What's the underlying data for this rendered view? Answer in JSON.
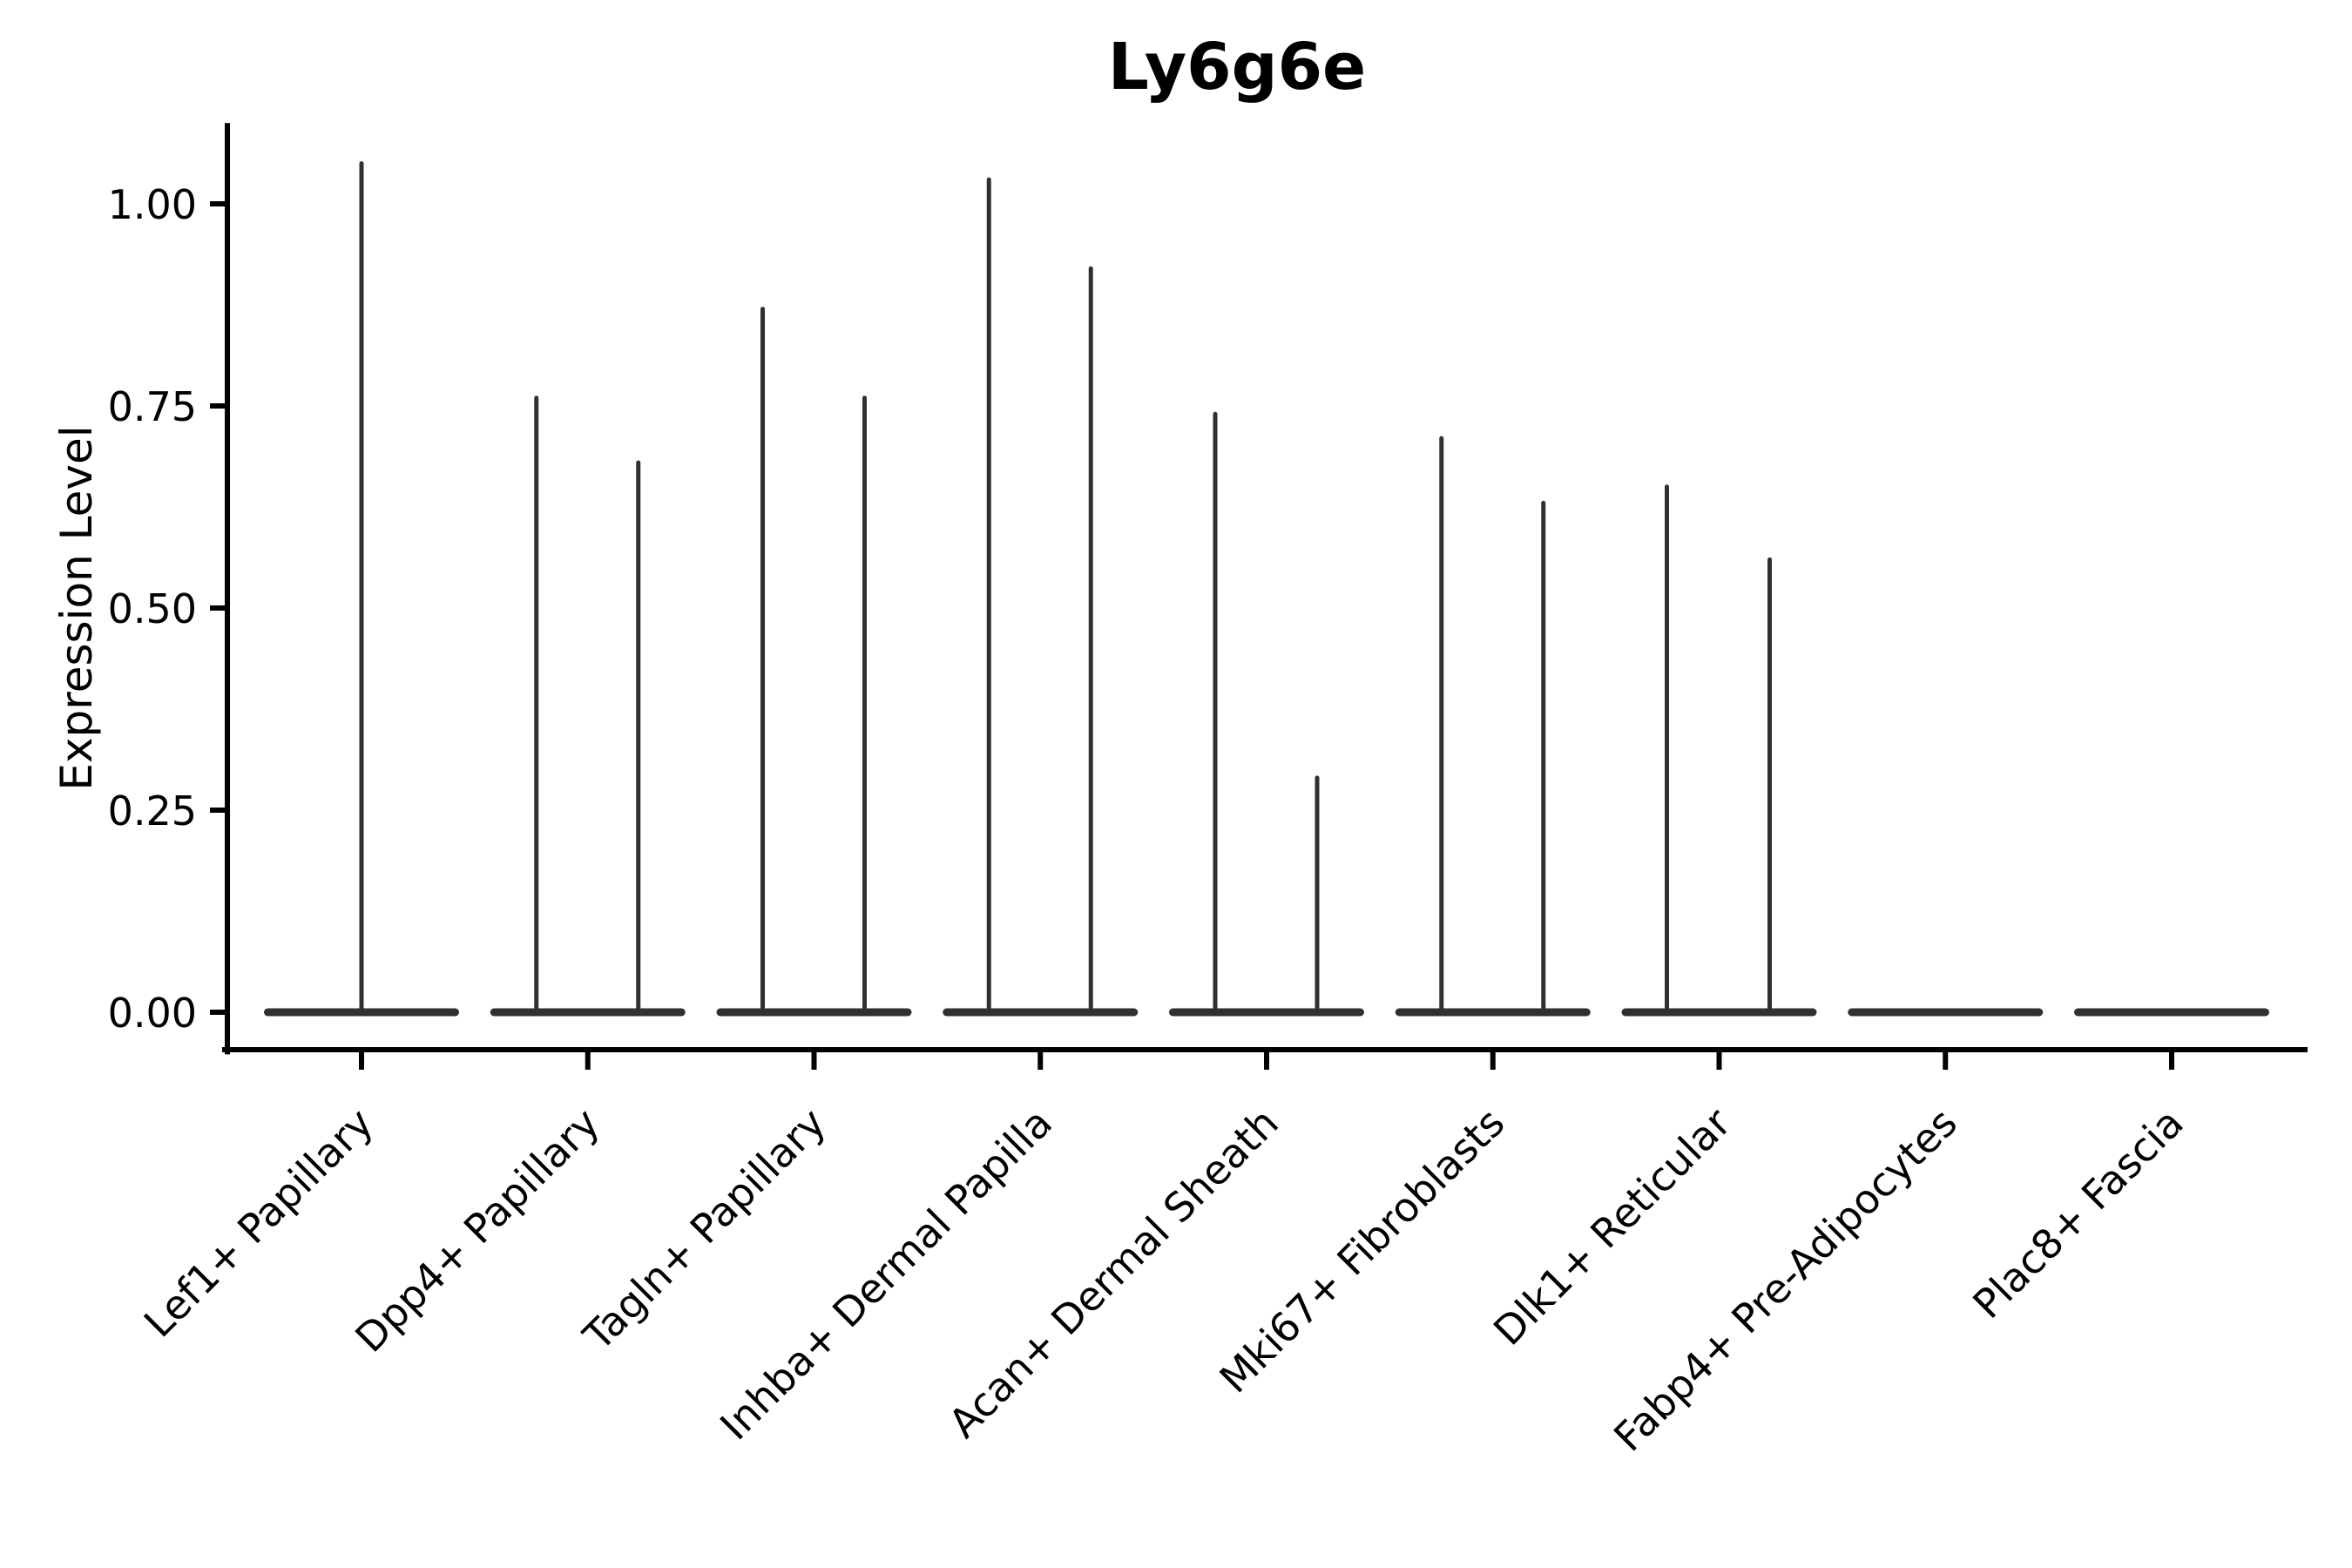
{
  "figure": {
    "title": "Ly6g6e",
    "background_color": "#ffffff"
  },
  "chart_data": {
    "type": "violin",
    "title": "Ly6g6e",
    "xlabel": "",
    "ylabel": "Expression Level",
    "ylim": [
      -0.05,
      1.1
    ],
    "grid": "off",
    "legend": "none",
    "yticks": [
      0.0,
      0.25,
      0.5,
      0.75,
      1.0
    ],
    "ytick_labels": [
      "0.00",
      "0.25",
      "0.50",
      "0.75",
      "1.00"
    ],
    "categories": [
      "Lef1+ Papillary",
      "Dpp4+ Papillary",
      "Tagln+ Papillary",
      "Inhba+ Dermal Papilla",
      "Acan+ Dermal Sheath",
      "Mki67+ Fibroblasts",
      "Dlk1+ Reticular",
      "Fabp4+ Pre-Adipocytes",
      "Plac8+ Fascia"
    ],
    "violins": [
      {
        "category": "Lef1+ Papillary",
        "base_value": 0,
        "spike_values": [
          1.05
        ],
        "spike_offsets": [
          0
        ]
      },
      {
        "category": "Dpp4+ Papillary",
        "base_value": 0,
        "spike_values": [
          0.76,
          0.68
        ],
        "spike_offsets": [
          -59,
          58
        ]
      },
      {
        "category": "Tagln+ Papillary",
        "base_value": 0,
        "spike_values": [
          0.87,
          0.76
        ],
        "spike_offsets": [
          -59,
          58
        ]
      },
      {
        "category": "Inhba+ Dermal Papilla",
        "base_value": 0,
        "spike_values": [
          1.03,
          0.92
        ],
        "spike_offsets": [
          -59,
          58
        ]
      },
      {
        "category": "Acan+ Dermal Sheath",
        "base_value": 0,
        "spike_values": [
          0.74,
          0.29
        ],
        "spike_offsets": [
          -59,
          58
        ]
      },
      {
        "category": "Mki67+ Fibroblasts",
        "base_value": 0,
        "spike_values": [
          0.71,
          0.63
        ],
        "spike_offsets": [
          -59,
          58
        ]
      },
      {
        "category": "Dlk1+ Reticular",
        "base_value": 0,
        "spike_values": [
          0.65,
          0.56
        ],
        "spike_offsets": [
          -60,
          58
        ]
      },
      {
        "category": "Fabp4+ Pre-Adipocytes",
        "base_value": 0,
        "spike_values": [],
        "spike_offsets": []
      },
      {
        "category": "Plac8+ Fascia",
        "base_value": 0,
        "spike_values": [],
        "spike_offsets": []
      }
    ],
    "colors": {
      "violin": "#303030",
      "axis": "#000000",
      "text": "#000000",
      "background": "#ffffff"
    }
  }
}
